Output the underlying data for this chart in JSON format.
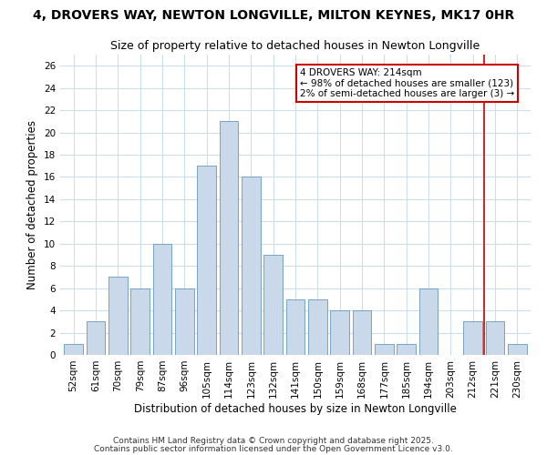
{
  "title1": "4, DROVERS WAY, NEWTON LONGVILLE, MILTON KEYNES, MK17 0HR",
  "title2": "Size of property relative to detached houses in Newton Longville",
  "xlabel": "Distribution of detached houses by size in Newton Longville",
  "ylabel": "Number of detached properties",
  "categories": [
    "52sqm",
    "61sqm",
    "70sqm",
    "79sqm",
    "87sqm",
    "96sqm",
    "105sqm",
    "114sqm",
    "123sqm",
    "132sqm",
    "141sqm",
    "150sqm",
    "159sqm",
    "168sqm",
    "177sqm",
    "185sqm",
    "194sqm",
    "203sqm",
    "212sqm",
    "221sqm",
    "230sqm"
  ],
  "values": [
    1,
    3,
    7,
    6,
    10,
    6,
    17,
    21,
    16,
    9,
    5,
    5,
    4,
    4,
    1,
    1,
    6,
    0,
    3,
    3,
    1
  ],
  "bar_color": "#c9d9ea",
  "bar_edge_color": "#6699bb",
  "vline_color": "#cc0000",
  "annotation_text": "4 DROVERS WAY: 214sqm\n← 98% of detached houses are smaller (123)\n2% of semi-detached houses are larger (3) →",
  "annotation_box_color": "#cc0000",
  "bg_color": "#ffffff",
  "plot_bg_color": "#ffffff",
  "grid_color": "#ccddee",
  "footer1": "Contains HM Land Registry data © Crown copyright and database right 2025.",
  "footer2": "Contains public sector information licensed under the Open Government Licence v3.0.",
  "ylim": [
    0,
    27
  ],
  "yticks": [
    0,
    2,
    4,
    6,
    8,
    10,
    12,
    14,
    16,
    18,
    20,
    22,
    24,
    26
  ],
  "title1_fontsize": 10,
  "title2_fontsize": 9,
  "xlabel_fontsize": 8.5,
  "ylabel_fontsize": 8.5,
  "tick_fontsize": 7.5,
  "annotation_fontsize": 7.5,
  "footer_fontsize": 6.5
}
